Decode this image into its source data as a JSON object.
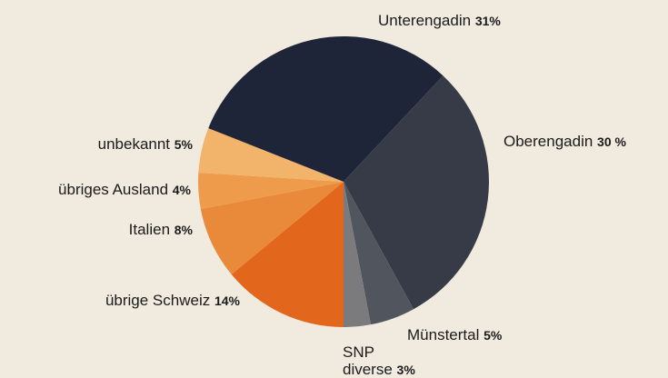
{
  "chart_data": {
    "type": "pie",
    "title": "",
    "slices": [
      {
        "label": "Unterengadin",
        "value": 31,
        "display": "31%",
        "color": "#1e2538"
      },
      {
        "label": "Oberengadin",
        "value": 30,
        "display": "30 %",
        "color": "#363b47"
      },
      {
        "label": "Münstertal",
        "value": 5,
        "display": "5%",
        "color": "#51555d"
      },
      {
        "label": "SNP",
        "sublabel": "diverse",
        "value": 3,
        "display": "3%",
        "color": "#7b7b7d"
      },
      {
        "label": "übrige Schweiz",
        "value": 14,
        "display": "14%",
        "color": "#e2661c"
      },
      {
        "label": "Italien",
        "value": 8,
        "display": "8%",
        "color": "#e98a3b"
      },
      {
        "label": "übriges Ausland",
        "value": 4,
        "display": "4%",
        "color": "#ee9c4c"
      },
      {
        "label": "unbekannt",
        "value": 5,
        "display": "5%",
        "color": "#f2b36a"
      }
    ]
  }
}
